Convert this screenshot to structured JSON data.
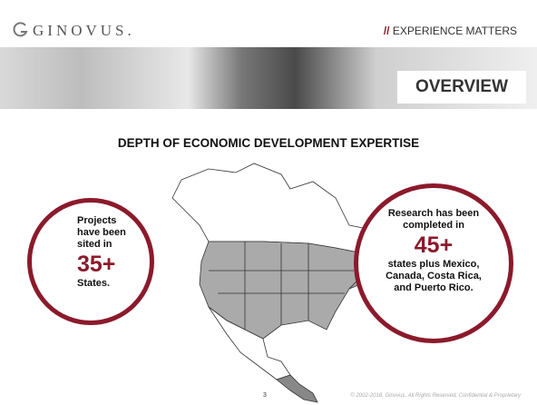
{
  "header": {
    "logo": "GINOVUS.",
    "tagline_mark": "//",
    "tagline": "EXPERIENCE MATTERS",
    "section": "OVERVIEW"
  },
  "title": "DEPTH OF ECONOMIC DEVELOPMENT EXPERTISE",
  "left_callout": {
    "lead": "Projects have been sited in",
    "number": "35+",
    "tail": "States."
  },
  "right_callout": {
    "lead": "Research has been completed in",
    "number": "45+",
    "tail": "states plus Mexico, Canada, Costa Rica, and Puerto Rico."
  },
  "footer": {
    "page": "3",
    "copyright": "© 2002-2018, Ginovus, All Rights Reserved, Confidential & Proprietary"
  }
}
